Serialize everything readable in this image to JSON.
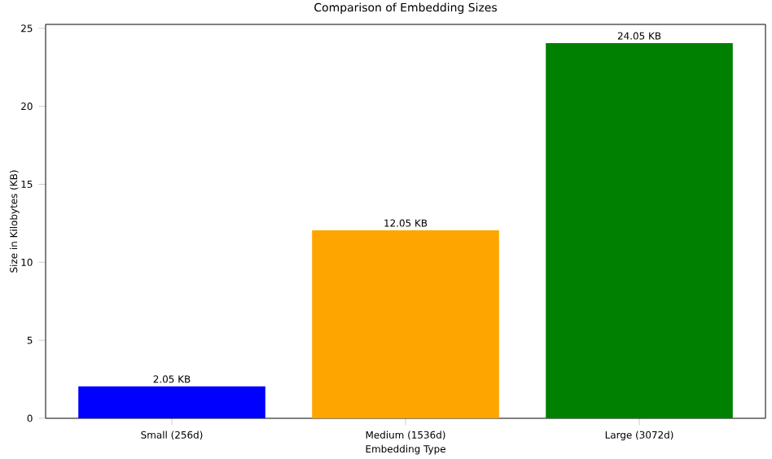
{
  "chart_data": {
    "type": "bar",
    "title": "Comparison of Embedding Sizes",
    "xlabel": "Embedding Type",
    "ylabel": "Size in Kilobytes (KB)",
    "categories": [
      "Small (256d)",
      "Medium (1536d)",
      "Large (3072d)"
    ],
    "values": [
      2.05,
      12.05,
      24.05
    ],
    "colors": [
      "#0000ff",
      "#ffa500",
      "#008000"
    ],
    "value_labels": [
      "2.05 KB",
      "12.05 KB",
      "24.05 KB"
    ],
    "ylim": [
      0,
      25.25
    ],
    "yticks": [
      0,
      5,
      10,
      15,
      20,
      25
    ]
  }
}
